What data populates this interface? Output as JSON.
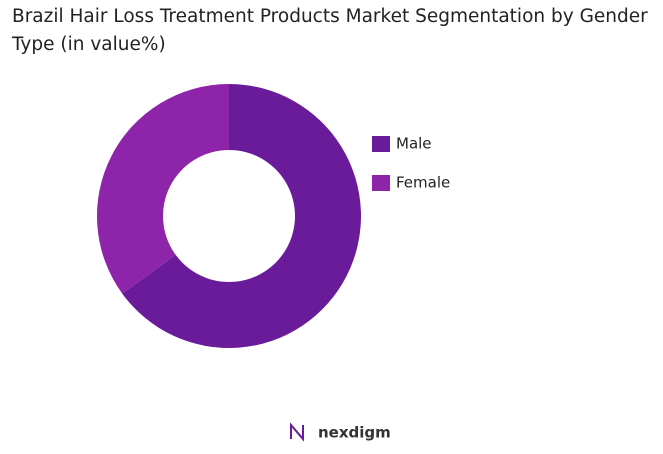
{
  "chart_data": {
    "type": "donut",
    "title": "Brazil Hair Loss Treatment Products Market Segmentation by Gender Type (in value%)",
    "categories": [
      "Male",
      "Female"
    ],
    "values": [
      65,
      35
    ],
    "colors": [
      "#6a1b9a",
      "#8e24aa"
    ],
    "legend": "right"
  },
  "footer": {
    "logo": "nexdigm"
  }
}
